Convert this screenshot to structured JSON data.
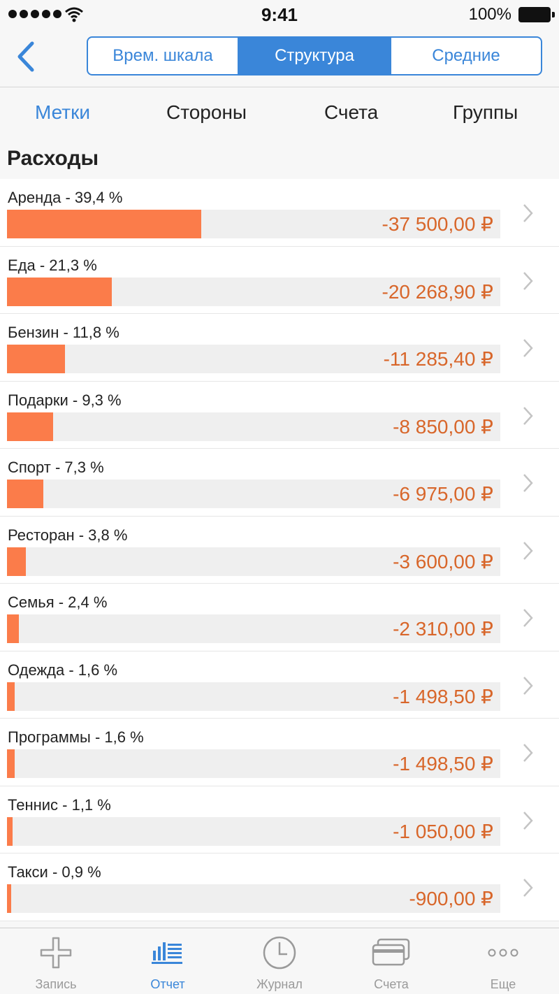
{
  "status_bar": {
    "time": "9:41",
    "battery": "100%"
  },
  "nav": {
    "back_icon": "chevron-left-icon",
    "segments": [
      {
        "label": "Врем. шкала",
        "active": false
      },
      {
        "label": "Структура",
        "active": true
      },
      {
        "label": "Средние",
        "active": false
      }
    ]
  },
  "subtabs": [
    {
      "label": "Метки",
      "active": true
    },
    {
      "label": "Стороны",
      "active": false
    },
    {
      "label": "Счета",
      "active": false
    },
    {
      "label": "Группы",
      "active": false
    }
  ],
  "section": {
    "title": "Расходы"
  },
  "colors": {
    "accent": "#3a86d9",
    "bar": "#fb7c4a",
    "amount": "#d8662a"
  },
  "rows": [
    {
      "label": "Аренда - 39,4 %",
      "amount": "-37 500,00 ₽",
      "share": 0.394
    },
    {
      "label": "Еда - 21,3 %",
      "amount": "-20 268,90 ₽",
      "share": 0.213
    },
    {
      "label": "Бензин - 11,8 %",
      "amount": "-11 285,40 ₽",
      "share": 0.118
    },
    {
      "label": "Подарки - 9,3 %",
      "amount": "-8 850,00 ₽",
      "share": 0.093
    },
    {
      "label": "Спорт - 7,3 %",
      "amount": "-6 975,00 ₽",
      "share": 0.073
    },
    {
      "label": "Ресторан - 3,8 %",
      "amount": "-3 600,00 ₽",
      "share": 0.038
    },
    {
      "label": "Семья - 2,4 %",
      "amount": "-2 310,00 ₽",
      "share": 0.024
    },
    {
      "label": "Одежда - 1,6 %",
      "amount": "-1 498,50 ₽",
      "share": 0.016
    },
    {
      "label": "Программы - 1,6 %",
      "amount": "-1 498,50 ₽",
      "share": 0.016
    },
    {
      "label": "Теннис - 1,1 %",
      "amount": "-1 050,00 ₽",
      "share": 0.011
    },
    {
      "label": "Такси - 0,9 %",
      "amount": "-900,00 ₽",
      "share": 0.009
    }
  ],
  "tab_bar": [
    {
      "label": "Запись",
      "icon": "plus-icon",
      "active": false
    },
    {
      "label": "Отчет",
      "icon": "report-icon",
      "active": true
    },
    {
      "label": "Журнал",
      "icon": "clock-icon",
      "active": false
    },
    {
      "label": "Счета",
      "icon": "cards-icon",
      "active": false
    },
    {
      "label": "Еще",
      "icon": "more-icon",
      "active": false
    }
  ]
}
